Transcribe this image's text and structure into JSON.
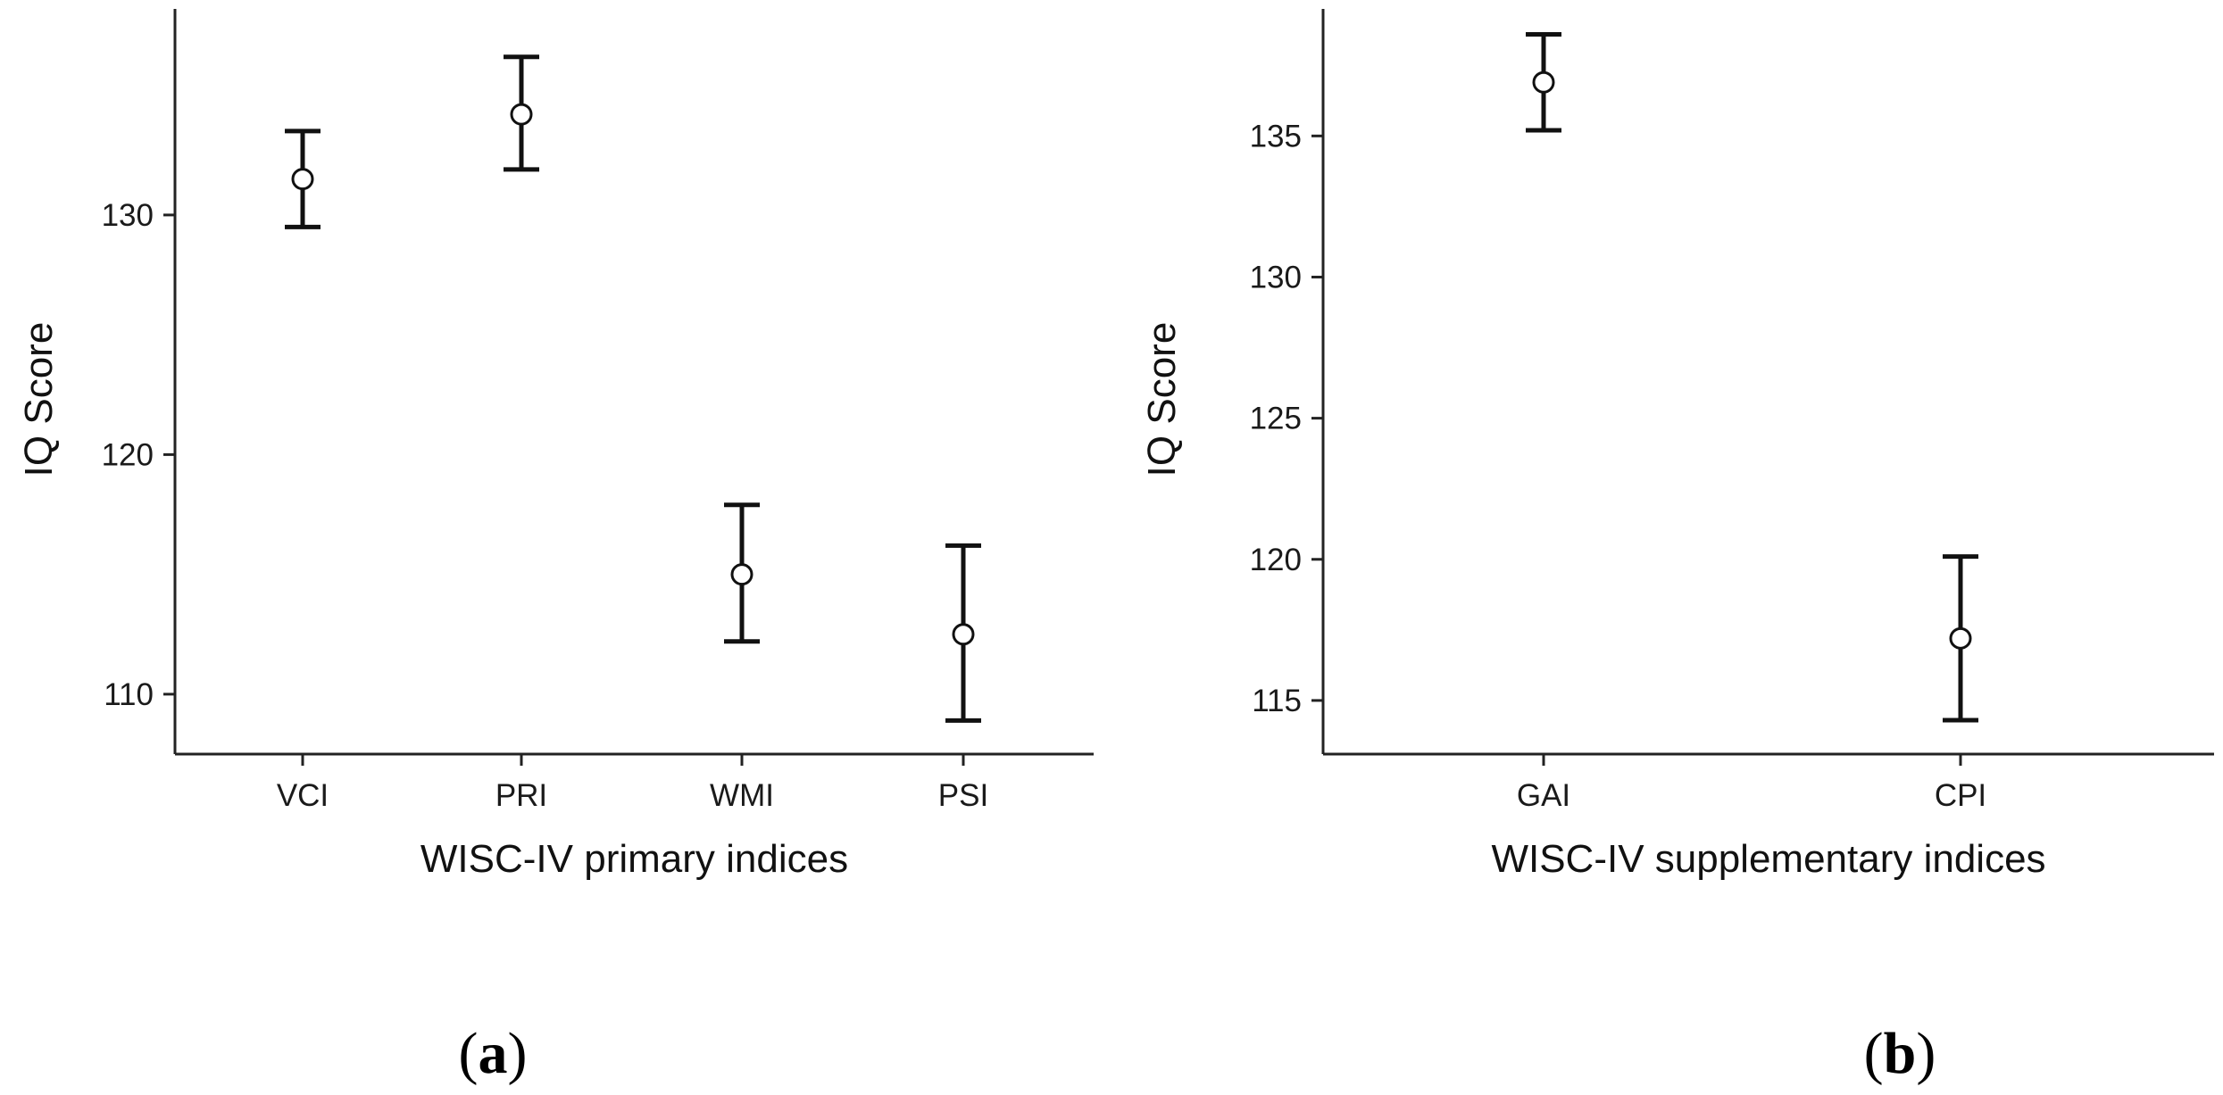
{
  "chart_data": [
    {
      "panel": "a",
      "type": "scatter",
      "title": "",
      "xlabel": "WISC-IV primary indices",
      "ylabel": "IQ Score",
      "categories": [
        "VCI",
        "PRI",
        "WMI",
        "PSI"
      ],
      "series": [
        {
          "values": [
            131.5,
            134.2,
            115.0,
            112.5
          ],
          "error_low": [
            129.5,
            131.9,
            112.2,
            108.9
          ],
          "error_high": [
            133.5,
            136.6,
            117.9,
            116.2
          ]
        }
      ],
      "ylim": [
        107.5,
        138.6
      ],
      "yticks": [
        110,
        120,
        130
      ],
      "grid": false,
      "legend": "none",
      "marker": "open-circle-with-error-bars",
      "colors": {
        "line": "#111111",
        "marker_fill": "#ffffff"
      }
    },
    {
      "panel": "b",
      "type": "scatter",
      "title": "",
      "xlabel": "WISC-IV supplementary indices",
      "ylabel": "IQ Score",
      "categories": [
        "GAI",
        "CPI"
      ],
      "series": [
        {
          "values": [
            136.9,
            117.2
          ],
          "error_low": [
            135.2,
            114.3
          ],
          "error_high": [
            138.6,
            120.1
          ]
        }
      ],
      "ylim": [
        113.1,
        139.5
      ],
      "yticks": [
        115,
        120,
        125,
        130,
        135
      ],
      "grid": false,
      "legend": "none",
      "marker": "open-circle-with-error-bars",
      "colors": {
        "line": "#111111",
        "marker_fill": "#ffffff"
      }
    }
  ],
  "panel_labels": [
    {
      "open": "(",
      "letter": "a",
      "close": ")"
    },
    {
      "open": "(",
      "letter": "b",
      "close": ")"
    }
  ]
}
